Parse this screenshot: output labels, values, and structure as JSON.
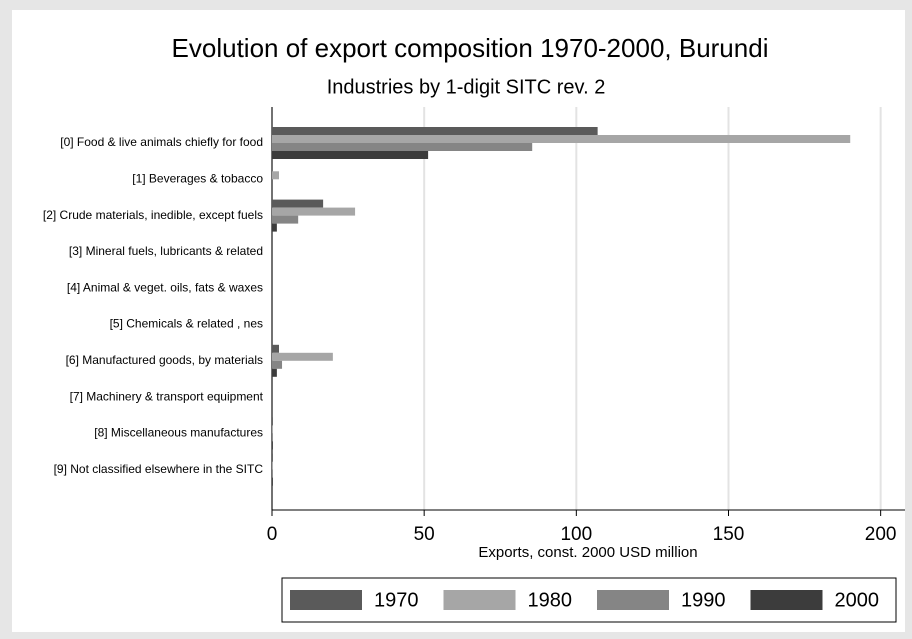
{
  "chart_data": {
    "type": "hbar",
    "title": "Evolution of export composition 1970-2000, Burundi",
    "subtitle": "Industries by 1-digit SITC rev. 2",
    "x_label": "Exports, const. 2000 USD million",
    "categories": [
      "[0] Food & live animals chiefly for food",
      "[1] Beverages & tobacco",
      "[2] Crude materials, inedible, except fuels",
      "[3] Mineral fuels, lubricants & related",
      "[4] Animal & veget. oils, fats & waxes",
      "[5] Chemicals & related , nes",
      "[6] Manufactured goods, by materials",
      "[7] Machinery & transport equipment",
      "[8] Miscellaneous manufactures",
      "[9] Not classified elsewhere in the SITC"
    ],
    "series": [
      {
        "name": "1970",
        "color": "#5a5a5a",
        "values": [
          107,
          0,
          16.8,
          0,
          0,
          0,
          2.3,
          0,
          0.3,
          0.3
        ]
      },
      {
        "name": "1980",
        "color": "#a6a6a6",
        "values": [
          190,
          2.3,
          27.3,
          0,
          0,
          0,
          20,
          0,
          0.3,
          0.3
        ]
      },
      {
        "name": "1990",
        "color": "#858585",
        "values": [
          85.5,
          0,
          8.6,
          0,
          0,
          0,
          3.3,
          0,
          0.3,
          0.3
        ]
      },
      {
        "name": "2000",
        "color": "#3c3c3c",
        "values": [
          51.3,
          0,
          1.6,
          0,
          0,
          0,
          1.6,
          0,
          0.3,
          0.3
        ]
      }
    ],
    "xlim": [
      0,
      208
    ],
    "xticks": [
      0,
      50,
      100,
      150,
      200
    ],
    "grid": true,
    "legend": "bottom"
  }
}
